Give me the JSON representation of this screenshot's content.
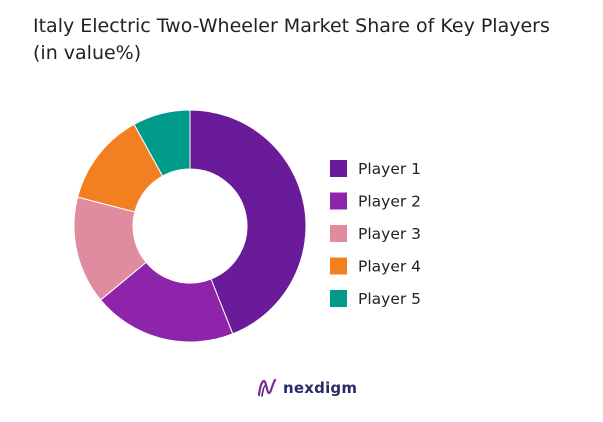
{
  "chart_data": {
    "type": "pie",
    "variant": "donut",
    "title_line1": "Italy Electric Two-Wheeler Market Share of Key Players",
    "title_line2": "(in value%)",
    "categories": [
      "Player 1",
      "Player 2",
      "Player 3",
      "Player 4",
      "Player 5"
    ],
    "values": [
      44,
      20,
      15,
      13,
      8
    ],
    "colors": [
      "#6a1b9a",
      "#8e24aa",
      "#e08ba0",
      "#f47f20",
      "#009a8a"
    ],
    "legend_position": "right"
  },
  "brand": {
    "name": "nexdigm",
    "icon": "nexdigm-logo-icon"
  }
}
